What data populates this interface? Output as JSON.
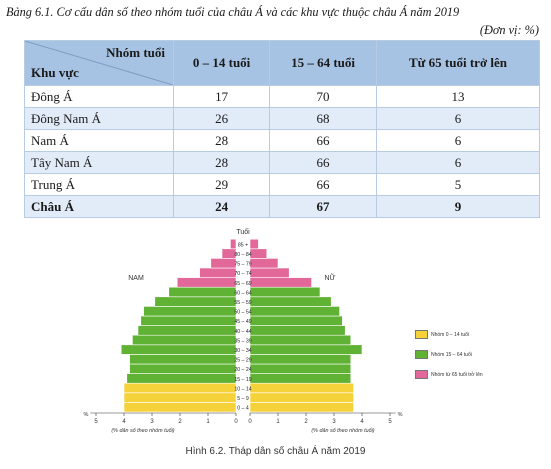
{
  "table": {
    "caption": "Bảng 6.1. Cơ cấu dân số theo nhóm tuổi của châu Á và các khu vực thuộc châu Á năm 2019",
    "unit": "(Đơn vị: %)",
    "corner_top": "Nhóm tuổi",
    "corner_bottom": "Khu vực",
    "columns": [
      "0 – 14 tuổi",
      "15 – 64 tuổi",
      "Từ 65 tuổi trở lên"
    ],
    "rows": [
      {
        "region": "Đông Á",
        "values": [
          "17",
          "70",
          "13"
        ]
      },
      {
        "region": "Đông Nam Á",
        "values": [
          "26",
          "68",
          "6"
        ]
      },
      {
        "region": "Nam Á",
        "values": [
          "28",
          "66",
          "6"
        ]
      },
      {
        "region": "Tây Nam Á",
        "values": [
          "28",
          "66",
          "6"
        ]
      },
      {
        "region": "Trung Á",
        "values": [
          "29",
          "66",
          "5"
        ]
      },
      {
        "region": "Châu Á",
        "values": [
          "24",
          "67",
          "9"
        ]
      }
    ]
  },
  "chart_data": {
    "type": "bar",
    "subtype": "population pyramid",
    "title": "Hình 6.2. Tháp dân số châu Á năm 2019",
    "age_axis_label": "Tuổi",
    "left_label": "NAM",
    "right_label": "NỮ",
    "xlabel_left": "(% dân số theo nhóm tuổi)",
    "xlabel_right": "(% dân số theo nhóm tuổi)",
    "x_ticks": [
      "5",
      "4",
      "3",
      "2",
      "1",
      "0",
      "0",
      "1",
      "2",
      "3",
      "4",
      "5"
    ],
    "x_unit": "%",
    "xlim": [
      0,
      5
    ],
    "categories": [
      "0 – 4",
      "5 – 9",
      "10 – 14",
      "15 – 19",
      "20 – 24",
      "25 – 29",
      "30 – 34",
      "35 – 39",
      "40 – 44",
      "45 – 49",
      "50 – 54",
      "55 – 59",
      "60 – 64",
      "65 – 69",
      "70 – 74",
      "75 – 79",
      "80 – 84",
      "85 +"
    ],
    "series": [
      {
        "name": "NAM",
        "values": [
          4.0,
          4.0,
          4.0,
          3.9,
          3.8,
          3.8,
          4.1,
          3.7,
          3.5,
          3.4,
          3.3,
          2.9,
          2.4,
          2.1,
          1.3,
          0.9,
          0.5,
          0.2
        ]
      },
      {
        "name": "NỮ",
        "values": [
          3.7,
          3.7,
          3.7,
          3.6,
          3.6,
          3.6,
          4.0,
          3.6,
          3.4,
          3.3,
          3.2,
          2.9,
          2.5,
          2.2,
          1.4,
          1.0,
          0.6,
          0.3
        ]
      }
    ],
    "legend": [
      {
        "label": "Nhóm 0 – 14 tuổi",
        "color": "#f6d23a"
      },
      {
        "label": "Nhóm 15 – 64 tuổi",
        "color": "#5fb233"
      },
      {
        "label": "Nhóm từ 65 tuổi trở lên",
        "color": "#e2689a"
      }
    ]
  }
}
